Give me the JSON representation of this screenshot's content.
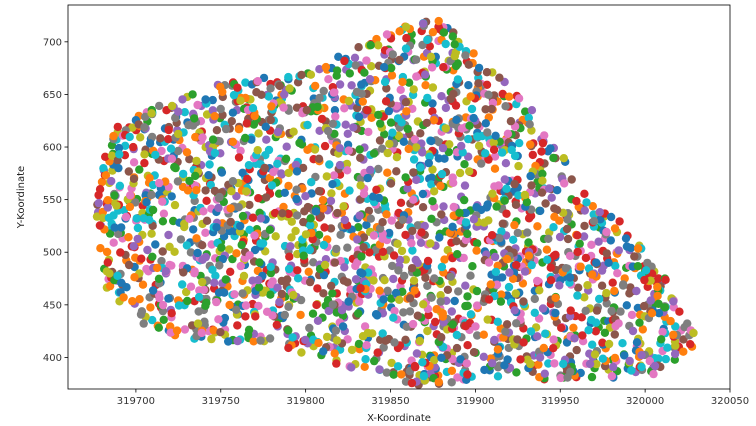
{
  "chart_data": {
    "type": "scatter",
    "title": "",
    "xlabel": "X-Koordinate",
    "ylabel": "Y-Koordinate",
    "xlim": [
      319660,
      320050
    ],
    "ylim": [
      370,
      735
    ],
    "x_ticks": [
      319700,
      319750,
      319800,
      319850,
      319900,
      319950,
      320000,
      320050
    ],
    "y_ticks": [
      400,
      450,
      500,
      550,
      600,
      650,
      700
    ],
    "x_tick_labels": [
      "319700",
      "319750",
      "319800",
      "319850",
      "319900",
      "319950",
      "320000",
      "320050"
    ],
    "y_tick_labels": [
      "400",
      "450",
      "500",
      "550",
      "600",
      "650",
      "700"
    ],
    "grid": false,
    "legend": "none",
    "colors": [
      "#1f77b4",
      "#ff7f0e",
      "#2ca02c",
      "#d62728",
      "#9467bd",
      "#8c564b",
      "#e377c2",
      "#7f7f7f",
      "#bcbd22",
      "#17becf"
    ],
    "point_count": 2600,
    "region_outline": [
      [
        319677,
        575
      ],
      [
        319688,
        618
      ],
      [
        319710,
        640
      ],
      [
        319750,
        660
      ],
      [
        319790,
        670
      ],
      [
        319820,
        688
      ],
      [
        319860,
        718
      ],
      [
        319880,
        722
      ],
      [
        319905,
        680
      ],
      [
        319940,
        628
      ],
      [
        319962,
        560
      ],
      [
        319985,
        530
      ],
      [
        320010,
        480
      ],
      [
        320032,
        415
      ],
      [
        320005,
        383
      ],
      [
        319960,
        378
      ],
      [
        319900,
        380
      ],
      [
        319870,
        372
      ],
      [
        319830,
        388
      ],
      [
        319780,
        412
      ],
      [
        319730,
        418
      ],
      [
        319700,
        430
      ],
      [
        319683,
        460
      ],
      [
        319677,
        520
      ]
    ]
  }
}
